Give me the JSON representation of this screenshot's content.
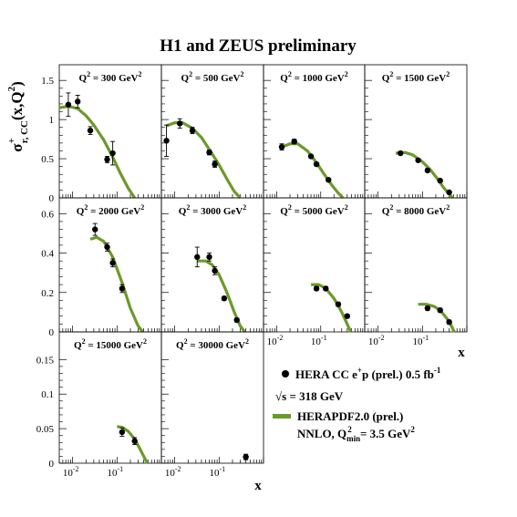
{
  "title": "H1 and ZEUS preliminary",
  "colors": {
    "theory": "#6b9a2a",
    "data": "#000000",
    "frame": "#000000"
  },
  "axes": {
    "x_label": "x",
    "x_scale": "log",
    "x_range": [
      0.005,
      1.0
    ],
    "x_ticks": [
      {
        "value": 0.01,
        "label": "10",
        "sup": "-2"
      },
      {
        "value": 0.1,
        "label": "10",
        "sup": "-1"
      }
    ],
    "y_label": {
      "main": "σ",
      "sup": "+",
      "sub": "r, CC",
      "rest": "(x,Q",
      "rest_sup": "2",
      "close": ")"
    },
    "row_ranges": [
      [
        0,
        1.7
      ],
      [
        0,
        0.68
      ],
      [
        0,
        0.19
      ]
    ],
    "row_ticks": [
      [
        {
          "v": 0,
          "t": "0"
        },
        {
          "v": 0.5,
          "t": "0.5"
        },
        {
          "v": 1,
          "t": "1"
        },
        {
          "v": 1.5,
          "t": "1.5"
        }
      ],
      [
        {
          "v": 0,
          "t": "0"
        },
        {
          "v": 0.2,
          "t": "0.2"
        },
        {
          "v": 0.4,
          "t": "0.4"
        },
        {
          "v": 0.6,
          "t": "0.6"
        }
      ],
      [
        {
          "v": 0,
          "t": "0"
        },
        {
          "v": 0.05,
          "t": "0.05"
        },
        {
          "v": 0.1,
          "t": "0.1"
        },
        {
          "v": 0.15,
          "t": "0.15"
        }
      ]
    ]
  },
  "legend": {
    "data_label": "HERA CC e",
    "data_label_sup": "+",
    "data_label_rest": "p (prel.) 0.5 fb",
    "data_label_sup2": "-1",
    "sqrt_label": "√s = 318 GeV",
    "theory_label": "HERAPDF2.0 (prel.)",
    "theory_label2": "NNLO, Q",
    "theory_label2_sub": "min",
    "theory_label2_sup": "2",
    "theory_label2_rest": " = 3.5 GeV"
  },
  "chart_data": {
    "type": "scatter",
    "title": "H1 and ZEUS preliminary",
    "xlabel": "x",
    "ylabel": "σ+ r,CC (x,Q2)",
    "panels": [
      {
        "label": "Q",
        "q2": "300",
        "row": 0,
        "col": 0,
        "points": [
          {
            "x": 0.008,
            "y": 1.19,
            "e": 0.15
          },
          {
            "x": 0.013,
            "y": 1.23,
            "e": 0.08
          },
          {
            "x": 0.025,
            "y": 0.86,
            "e": 0.05
          },
          {
            "x": 0.06,
            "y": 0.49,
            "e": 0.04
          },
          {
            "x": 0.08,
            "y": 0.57,
            "e": 0.15
          }
        ],
        "curve": [
          [
            0.005,
            1.15
          ],
          [
            0.008,
            1.17
          ],
          [
            0.013,
            1.14
          ],
          [
            0.02,
            1.05
          ],
          [
            0.03,
            0.93
          ],
          [
            0.05,
            0.74
          ],
          [
            0.08,
            0.52
          ],
          [
            0.12,
            0.31
          ],
          [
            0.18,
            0.12
          ],
          [
            0.25,
            0.0
          ]
        ]
      },
      {
        "label": "Q",
        "q2": "500",
        "row": 0,
        "col": 1,
        "points": [
          {
            "x": 0.0065,
            "y": 0.73,
            "e": 0.2
          },
          {
            "x": 0.013,
            "y": 0.95,
            "e": 0.06
          },
          {
            "x": 0.025,
            "y": 0.86,
            "e": 0.04
          },
          {
            "x": 0.06,
            "y": 0.58,
            "e": 0.03
          },
          {
            "x": 0.08,
            "y": 0.43,
            "e": 0.04
          }
        ],
        "curve": [
          [
            0.0065,
            0.92
          ],
          [
            0.01,
            0.96
          ],
          [
            0.015,
            0.96
          ],
          [
            0.025,
            0.89
          ],
          [
            0.04,
            0.77
          ],
          [
            0.06,
            0.62
          ],
          [
            0.1,
            0.42
          ],
          [
            0.15,
            0.24
          ],
          [
            0.22,
            0.08
          ],
          [
            0.3,
            0.0
          ]
        ]
      },
      {
        "label": "Q",
        "q2": "1000",
        "row": 0,
        "col": 2,
        "points": [
          {
            "x": 0.013,
            "y": 0.65,
            "e": 0.04
          },
          {
            "x": 0.025,
            "y": 0.72,
            "e": 0.03
          },
          {
            "x": 0.06,
            "y": 0.53,
            "e": 0.02
          },
          {
            "x": 0.08,
            "y": 0.43,
            "e": 0.02
          },
          {
            "x": 0.15,
            "y": 0.23,
            "e": 0.02
          }
        ],
        "curve": [
          [
            0.013,
            0.65
          ],
          [
            0.02,
            0.69
          ],
          [
            0.03,
            0.69
          ],
          [
            0.05,
            0.6
          ],
          [
            0.08,
            0.45
          ],
          [
            0.12,
            0.3
          ],
          [
            0.18,
            0.16
          ],
          [
            0.25,
            0.06
          ],
          [
            0.32,
            0.0
          ]
        ]
      },
      {
        "label": "Q",
        "q2": "1500",
        "row": 0,
        "col": 3,
        "points": [
          {
            "x": 0.032,
            "y": 0.57,
            "e": 0.02
          },
          {
            "x": 0.08,
            "y": 0.48,
            "e": 0.02
          },
          {
            "x": 0.13,
            "y": 0.35,
            "e": 0.02
          },
          {
            "x": 0.25,
            "y": 0.22,
            "e": 0.02
          },
          {
            "x": 0.4,
            "y": 0.07,
            "e": 0.01
          }
        ],
        "curve": [
          [
            0.025,
            0.57
          ],
          [
            0.04,
            0.58
          ],
          [
            0.06,
            0.55
          ],
          [
            0.1,
            0.46
          ],
          [
            0.15,
            0.36
          ],
          [
            0.22,
            0.24
          ],
          [
            0.3,
            0.13
          ],
          [
            0.4,
            0.05
          ],
          [
            0.48,
            0.0
          ]
        ]
      },
      {
        "label": "Q",
        "q2": "2000",
        "row": 1,
        "col": 0,
        "points": [
          {
            "x": 0.032,
            "y": 0.52,
            "e": 0.03
          },
          {
            "x": 0.06,
            "y": 0.43,
            "e": 0.02
          },
          {
            "x": 0.08,
            "y": 0.35,
            "e": 0.02
          },
          {
            "x": 0.13,
            "y": 0.22,
            "e": 0.02
          }
        ],
        "curve": [
          [
            0.025,
            0.47
          ],
          [
            0.035,
            0.48
          ],
          [
            0.05,
            0.46
          ],
          [
            0.08,
            0.38
          ],
          [
            0.13,
            0.25
          ],
          [
            0.2,
            0.12
          ],
          [
            0.3,
            0.03
          ],
          [
            0.38,
            0.0
          ]
        ]
      },
      {
        "label": "Q",
        "q2": "3000",
        "row": 1,
        "col": 1,
        "points": [
          {
            "x": 0.032,
            "y": 0.38,
            "e": 0.05
          },
          {
            "x": 0.06,
            "y": 0.38,
            "e": 0.02
          },
          {
            "x": 0.08,
            "y": 0.31,
            "e": 0.02
          },
          {
            "x": 0.13,
            "y": 0.17,
            "e": 0.01
          },
          {
            "x": 0.25,
            "y": 0.06,
            "e": 0.01
          }
        ],
        "curve": [
          [
            0.032,
            0.36
          ],
          [
            0.05,
            0.36
          ],
          [
            0.07,
            0.34
          ],
          [
            0.1,
            0.29
          ],
          [
            0.15,
            0.2
          ],
          [
            0.22,
            0.1
          ],
          [
            0.3,
            0.03
          ],
          [
            0.38,
            0.0
          ]
        ]
      },
      {
        "label": "Q",
        "q2": "5000",
        "row": 1,
        "col": 2,
        "points": [
          {
            "x": 0.08,
            "y": 0.22,
            "e": 0.01
          },
          {
            "x": 0.13,
            "y": 0.22,
            "e": 0.01
          },
          {
            "x": 0.25,
            "y": 0.14,
            "e": 0.01
          },
          {
            "x": 0.4,
            "y": 0.08,
            "e": 0.01
          }
        ],
        "curve": [
          [
            0.06,
            0.24
          ],
          [
            0.09,
            0.24
          ],
          [
            0.13,
            0.22
          ],
          [
            0.2,
            0.17
          ],
          [
            0.3,
            0.1
          ],
          [
            0.4,
            0.04
          ],
          [
            0.48,
            0.0
          ]
        ]
      },
      {
        "label": "Q",
        "q2": "8000",
        "row": 1,
        "col": 3,
        "points": [
          {
            "x": 0.13,
            "y": 0.12,
            "e": 0.01
          },
          {
            "x": 0.25,
            "y": 0.11,
            "e": 0.01
          },
          {
            "x": 0.4,
            "y": 0.05,
            "e": 0.01
          }
        ],
        "curve": [
          [
            0.08,
            0.14
          ],
          [
            0.12,
            0.14
          ],
          [
            0.18,
            0.13
          ],
          [
            0.25,
            0.11
          ],
          [
            0.35,
            0.07
          ],
          [
            0.45,
            0.03
          ],
          [
            0.52,
            0.0
          ]
        ]
      },
      {
        "label": "Q",
        "q2": "15000",
        "row": 2,
        "col": 0,
        "points": [
          {
            "x": 0.13,
            "y": 0.045,
            "e": 0.006
          },
          {
            "x": 0.25,
            "y": 0.032,
            "e": 0.005
          }
        ],
        "curve": [
          [
            0.1,
            0.053
          ],
          [
            0.13,
            0.052
          ],
          [
            0.18,
            0.046
          ],
          [
            0.25,
            0.035
          ],
          [
            0.32,
            0.022
          ],
          [
            0.4,
            0.01
          ],
          [
            0.48,
            0.0
          ]
        ]
      },
      {
        "label": "Q",
        "q2": "30000",
        "row": 2,
        "col": 1,
        "points": [
          {
            "x": 0.4,
            "y": 0.009,
            "e": 0.004
          }
        ],
        "curve": []
      }
    ]
  }
}
